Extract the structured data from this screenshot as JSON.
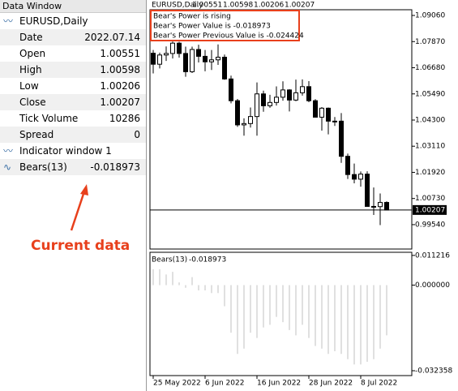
{
  "data_window": {
    "title": "Data Window",
    "symbol": "EURUSD,Daily",
    "rows": [
      [
        "Date",
        "2022.07.14"
      ],
      [
        "Open",
        "1.00551"
      ],
      [
        "High",
        "1.00598"
      ],
      [
        "Low",
        "1.00206"
      ],
      [
        "Close",
        "1.00207"
      ],
      [
        "Tick Volume",
        "10286"
      ],
      [
        "Spread",
        "0"
      ]
    ],
    "indicator_window": "Indicator window 1",
    "indicator": [
      "Bears(13)",
      "-0.018973"
    ]
  },
  "annotation": "Current data",
  "price_chart": {
    "type": "candlestick",
    "title": "EURUSD,Daily",
    "header_values": [
      "1.00551",
      "1.00598",
      "1.00206",
      "1.00207"
    ],
    "info": [
      "Bear's Power is rising",
      "Bear's Power Value is -0.018973",
      "Bear's Power Previous Value is -0.024424"
    ],
    "x": [
      "2022-05-25",
      "2022-05-26",
      "2022-05-27",
      "2022-05-30",
      "2022-05-31",
      "2022-06-01",
      "2022-06-02",
      "2022-06-03",
      "2022-06-06",
      "2022-06-07",
      "2022-06-08",
      "2022-06-09",
      "2022-06-10",
      "2022-06-13",
      "2022-06-14",
      "2022-06-15",
      "2022-06-16",
      "2022-06-17",
      "2022-06-20",
      "2022-06-21",
      "2022-06-22",
      "2022-06-23",
      "2022-06-24",
      "2022-06-27",
      "2022-06-28",
      "2022-06-29",
      "2022-06-30",
      "2022-07-01",
      "2022-07-04",
      "2022-07-05",
      "2022-07-06",
      "2022-07-07",
      "2022-07-08",
      "2022-07-11",
      "2022-07-12",
      "2022-07-13",
      "2022-07-14"
    ],
    "open": [
      1.0734,
      1.0684,
      1.0726,
      1.0733,
      1.078,
      1.0733,
      1.065,
      1.0751,
      1.072,
      1.0695,
      1.0704,
      1.0716,
      1.0617,
      1.0518,
      1.0408,
      1.0414,
      1.0446,
      1.0549,
      1.0495,
      1.051,
      1.0534,
      1.0567,
      1.0521,
      1.0554,
      1.0582,
      1.0518,
      1.0443,
      1.0484,
      1.0425,
      1.0425,
      1.0265,
      1.0182,
      1.0161,
      1.0184,
      1.0037,
      1.0036,
      1.00551
    ],
    "high": [
      1.0749,
      1.0737,
      1.0765,
      1.0787,
      1.0786,
      1.0764,
      1.0764,
      1.0773,
      1.0749,
      1.0749,
      1.0774,
      1.0728,
      1.0632,
      1.0526,
      1.0438,
      1.0487,
      1.0601,
      1.0564,
      1.0545,
      1.0583,
      1.0606,
      1.057,
      1.0614,
      1.0615,
      1.0607,
      1.0525,
      1.0489,
      1.0487,
      1.0444,
      1.0462,
      1.0277,
      1.0232,
      1.0196,
      1.0197,
      1.0123,
      1.0096,
      1.00598
    ],
    "low": [
      1.0642,
      1.0665,
      1.0699,
      1.071,
      1.0714,
      1.0627,
      1.0644,
      1.0692,
      1.0652,
      1.0658,
      1.0681,
      1.0613,
      1.0506,
      1.0399,
      1.0359,
      1.0396,
      1.0359,
      1.0468,
      1.0486,
      1.0496,
      1.0518,
      1.0469,
      1.0516,
      1.0541,
      1.0511,
      1.0442,
      1.0382,
      1.0365,
      1.0403,
      1.0235,
      1.0162,
      1.0142,
      1.0127,
      1.0035,
      0.9998,
      0.9952,
      1.00206
    ],
    "close": [
      1.0684,
      1.0726,
      1.0733,
      1.078,
      1.0733,
      1.065,
      1.0751,
      1.072,
      1.0695,
      1.0704,
      1.0716,
      1.0617,
      1.0518,
      1.0408,
      1.0414,
      1.0446,
      1.0549,
      1.0495,
      1.051,
      1.0534,
      1.0567,
      1.0521,
      1.0554,
      1.0582,
      1.0518,
      1.0443,
      1.0484,
      1.0425,
      1.0425,
      1.0265,
      1.0182,
      1.0161,
      1.0184,
      1.0037,
      1.0036,
      1.0055,
      1.00207
    ],
    "ylim": [
      0.9843,
      1.0932
    ],
    "yticks": [
      {
        "value": 1.0906,
        "label": "1.09060"
      },
      {
        "value": 1.0787,
        "label": "1.07870"
      },
      {
        "value": 1.0668,
        "label": "1.06680"
      },
      {
        "value": 1.0549,
        "label": "1.05490"
      },
      {
        "value": 1.043,
        "label": "1.04300"
      },
      {
        "value": 1.0311,
        "label": "1.03110"
      },
      {
        "value": 1.0192,
        "label": "1.01920"
      },
      {
        "value": 1.0073,
        "label": "1.00730"
      },
      {
        "value": 0.9954,
        "label": "0.99540"
      }
    ],
    "current_price": {
      "value": 1.00207,
      "label": "1.00207"
    },
    "xticks": [
      {
        "value": "2022-05-25",
        "label": "25 May 2022"
      },
      {
        "value": "2022-06-06",
        "label": "6 Jun 2022"
      },
      {
        "value": "2022-06-16",
        "label": "16 Jun 2022"
      },
      {
        "value": "2022-06-28",
        "label": "28 Jun 2022"
      },
      {
        "value": "2022-07-08",
        "label": "8 Jul 2022"
      }
    ]
  },
  "indicator_chart": {
    "type": "bar",
    "title": "Bears(13)",
    "title_value": "-0.018973",
    "color": "#c0c0c0",
    "values": [
      0.006,
      0.006,
      0.004,
      0.005,
      0.001,
      -0.001,
      0.003,
      -0.002,
      -0.002,
      -0.003,
      -0.003,
      -0.008,
      -0.018,
      -0.026,
      -0.024,
      -0.018,
      -0.02,
      -0.016,
      -0.015,
      -0.012,
      -0.014,
      -0.017,
      -0.019,
      -0.015,
      -0.02,
      -0.023,
      -0.024,
      -0.026,
      -0.025,
      -0.026,
      -0.028,
      -0.03,
      -0.03,
      -0.029,
      -0.028,
      -0.024,
      -0.018973
    ],
    "ylim": [
      -0.0342,
      0.0124
    ],
    "yticks": [
      {
        "value": 0.011216,
        "label": "0.011216"
      },
      {
        "value": 0,
        "label": "0.000000"
      },
      {
        "value": -0.032358,
        "label": "-0.032358"
      }
    ]
  }
}
